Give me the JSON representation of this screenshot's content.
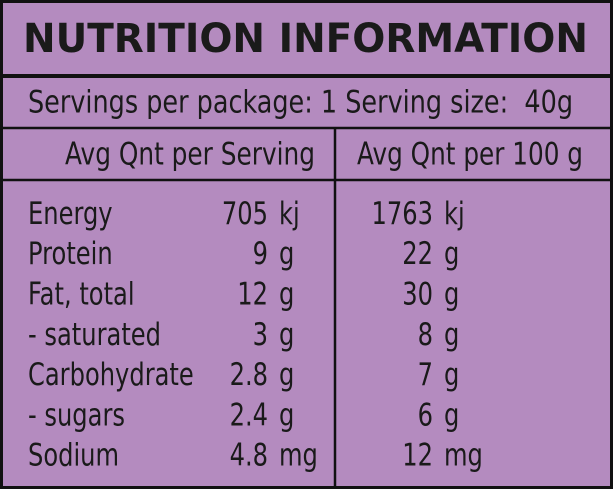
{
  "title": "NUTRITION INFORMATION",
  "servings": "Servings per package: 1 Serving size:  40g",
  "headers": [
    "Avg Qnt per Serving",
    "Avg Qnt per 100 g"
  ],
  "rows": [
    {
      "name": "Energy",
      "serving": "705",
      "serving_unit": "kj",
      "per100": "1763",
      "per100_unit": "kj"
    },
    {
      "name": "Protein",
      "serving": "9",
      "serving_unit": "g",
      "per100": "22",
      "per100_unit": "g"
    },
    {
      "name": "Fat, total",
      "serving": "12",
      "serving_unit": "g",
      "per100": "30",
      "per100_unit": "g"
    },
    {
      "name": "- saturated",
      "serving": "3",
      "serving_unit": "g",
      "per100": "8",
      "per100_unit": "g"
    },
    {
      "name": "Carbohydrate",
      "serving": "2.8",
      "serving_unit": "g",
      "per100": "7",
      "per100_unit": "g"
    },
    {
      "name": "- sugars",
      "serving": "2.4",
      "serving_unit": "g",
      "per100": "6",
      "per100_unit": "g"
    },
    {
      "name": "Sodium",
      "serving": "4.8",
      "serving_unit": "mg",
      "per100": "12",
      "per100_unit": "mg"
    }
  ]
}
